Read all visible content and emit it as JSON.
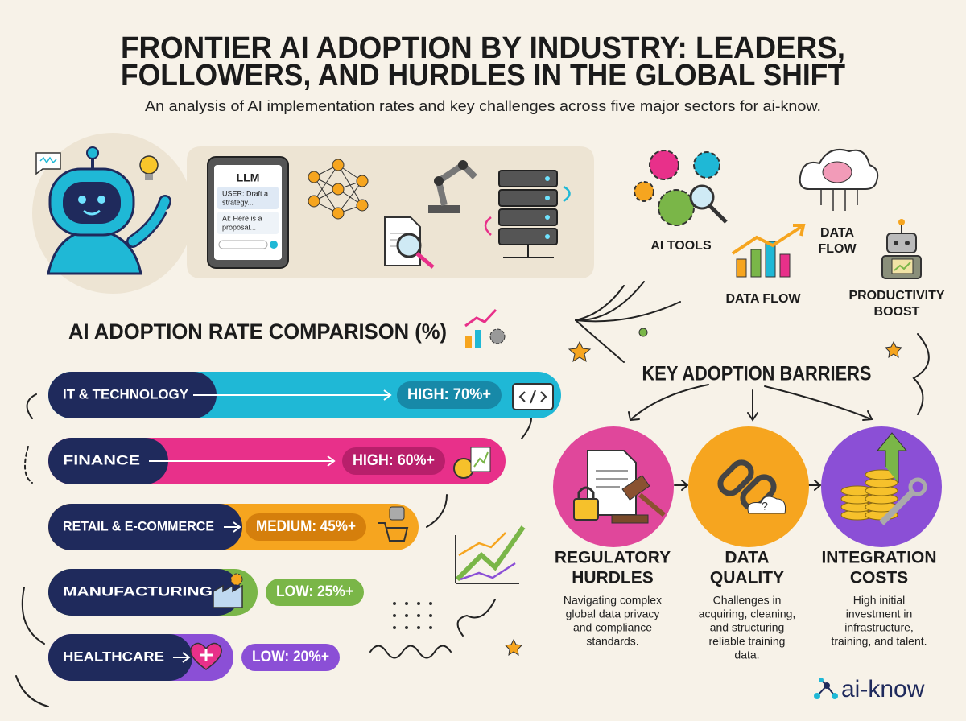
{
  "header": {
    "title": [
      "FRONTIER AI ADOPTION BY INDUSTRY: LEADERS,",
      "FOLLOWERS, AND HURDLES IN THE GLOBAL SHIFT"
    ],
    "subtitle": "An analysis of AI implementation rates and key challenges across five major sectors for ai-know."
  },
  "illustration": {
    "screen_title": "LLM",
    "user_message": [
      "USER: Draft a",
      "strategy..."
    ],
    "ai_message": [
      "AI:  Here is a",
      "proposal..."
    ]
  },
  "icons": {
    "ai_tools": "AI TOOLS",
    "data_flow_cloud": [
      "DATA",
      "FLOW"
    ],
    "data_flow_chart": "DATA FLOW",
    "productivity": [
      "PRODUCTIVITY",
      "BOOST"
    ]
  },
  "adoption": {
    "title": "AI ADOPTION RATE COMPARISON (%)",
    "industries": [
      {
        "name": "IT & TECHNOLOGY",
        "rate": "HIGH: 70%+"
      },
      {
        "name": "FINANCE",
        "rate": "HIGH: 60%+"
      },
      {
        "name": "RETAIL & E-COMMERCE",
        "rate": "MEDIUM: 45%+"
      },
      {
        "name": "MANUFACTURING",
        "rate": "LOW: 25%+"
      },
      {
        "name": "HEALTHCARE",
        "rate": "LOW: 20%+"
      }
    ]
  },
  "barriers": {
    "title": "KEY ADOPTION BARRIERS",
    "items": [
      {
        "title": [
          "REGULATORY",
          "HURDLES"
        ],
        "description": [
          "Navigating complex",
          "global data privacy",
          "and compliance",
          "standards."
        ]
      },
      {
        "title": [
          "DATA",
          "QUALITY"
        ],
        "description": [
          "Challenges in",
          "acquiring, cleaning,",
          "and structuring",
          "reliable training",
          "data."
        ]
      },
      {
        "title": [
          "INTEGRATION",
          "COSTS"
        ],
        "description": [
          "High initial",
          "investment in",
          "infrastructure,",
          "training, and talent."
        ]
      }
    ]
  },
  "brand": "ai-know"
}
